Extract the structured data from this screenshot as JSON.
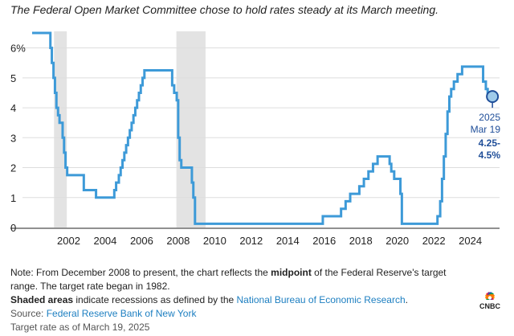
{
  "subtitle": "The Federal Open Market Committee chose to hold rates steady at its March meeting.",
  "chart_data": {
    "type": "line",
    "title": "",
    "xlabel": "",
    "ylabel": "",
    "y_tick_labels": [
      "0",
      "1",
      "2",
      "3",
      "4",
      "5",
      "6%"
    ],
    "x_tick_labels": [
      "2002",
      "2004",
      "2006",
      "2008",
      "2010",
      "2012",
      "2014",
      "2016",
      "2018",
      "2020",
      "2022",
      "2024"
    ],
    "xlim": [
      2000.0,
      2025.6
    ],
    "ylim": [
      0,
      6.5
    ],
    "grid": true,
    "line_color": "#3d9ad8",
    "shade_color": "#e3e3e3",
    "recessions": [
      [
        2001.2,
        2001.9
      ],
      [
        2007.9,
        2009.5
      ]
    ],
    "series": [
      {
        "x": [
          2000.0,
          2000.58,
          2001.0,
          2001.08,
          2001.17,
          2001.25,
          2001.33,
          2001.42,
          2001.5,
          2001.67,
          2001.75,
          2001.83,
          2001.92,
          2002.83,
          2003.5,
          2004.5,
          2004.6,
          2004.75,
          2004.85,
          2004.95,
          2005.05,
          2005.15,
          2005.25,
          2005.35,
          2005.45,
          2005.55,
          2005.65,
          2005.75,
          2005.85,
          2005.95,
          2006.05,
          2006.15,
          2006.25,
          2006.35,
          2006.5,
          2007.67,
          2007.78,
          2007.92,
          2008.0,
          2008.08,
          2008.17,
          2008.3,
          2008.75,
          2008.83,
          2008.92,
          2015.92,
          2016.92,
          2017.17,
          2017.42,
          2017.92,
          2018.17,
          2018.42,
          2018.67,
          2018.92,
          2019.58,
          2019.67,
          2019.83,
          2020.17,
          2020.25,
          2022.2,
          2022.35,
          2022.45,
          2022.55,
          2022.65,
          2022.75,
          2022.85,
          2022.95,
          2023.1,
          2023.3,
          2023.55,
          2024.7,
          2024.85,
          2024.95,
          2025.21
        ],
        "y": [
          6.5,
          6.5,
          6.0,
          5.5,
          5.0,
          4.5,
          4.0,
          3.75,
          3.5,
          3.0,
          2.5,
          2.0,
          1.75,
          1.25,
          1.0,
          1.25,
          1.5,
          1.75,
          2.0,
          2.25,
          2.5,
          2.75,
          3.0,
          3.25,
          3.5,
          3.75,
          4.0,
          4.25,
          4.5,
          4.75,
          5.0,
          5.25,
          5.25,
          5.25,
          5.25,
          4.75,
          4.5,
          4.25,
          3.0,
          2.25,
          2.0,
          2.0,
          1.5,
          1.0,
          0.125,
          0.375,
          0.625,
          0.875,
          1.125,
          1.375,
          1.625,
          1.875,
          2.125,
          2.375,
          2.125,
          1.875,
          1.625,
          1.125,
          0.125,
          0.375,
          0.875,
          1.625,
          2.375,
          3.125,
          3.875,
          4.375,
          4.625,
          4.875,
          5.125,
          5.375,
          4.875,
          4.625,
          4.375,
          4.375
        ]
      }
    ],
    "annotation": {
      "x": 2025.21,
      "y": 4.375,
      "lines": [
        "2025",
        "Mar 19",
        "4.25-",
        "4.5%"
      ],
      "color": "#1f4e99"
    }
  },
  "notes": {
    "line1_before": "Note: From December 2008 to present, the chart reflects the ",
    "line1_bold": "midpoint",
    "line1_after": " of the Federal Reserve's target",
    "line2": "range. The target rate began in 1982.",
    "line3_bold": "Shaded areas",
    "line3_middle": " indicate recessions as defined by the ",
    "line3_link": "National Bureau of Economic Research",
    "line3_end": ".",
    "source_label": "Source: ",
    "source_link": "Federal Reserve Bank of New York",
    "date_note": "Target rate as of March 19, 2025"
  },
  "logo": {
    "text": "CNBC"
  }
}
